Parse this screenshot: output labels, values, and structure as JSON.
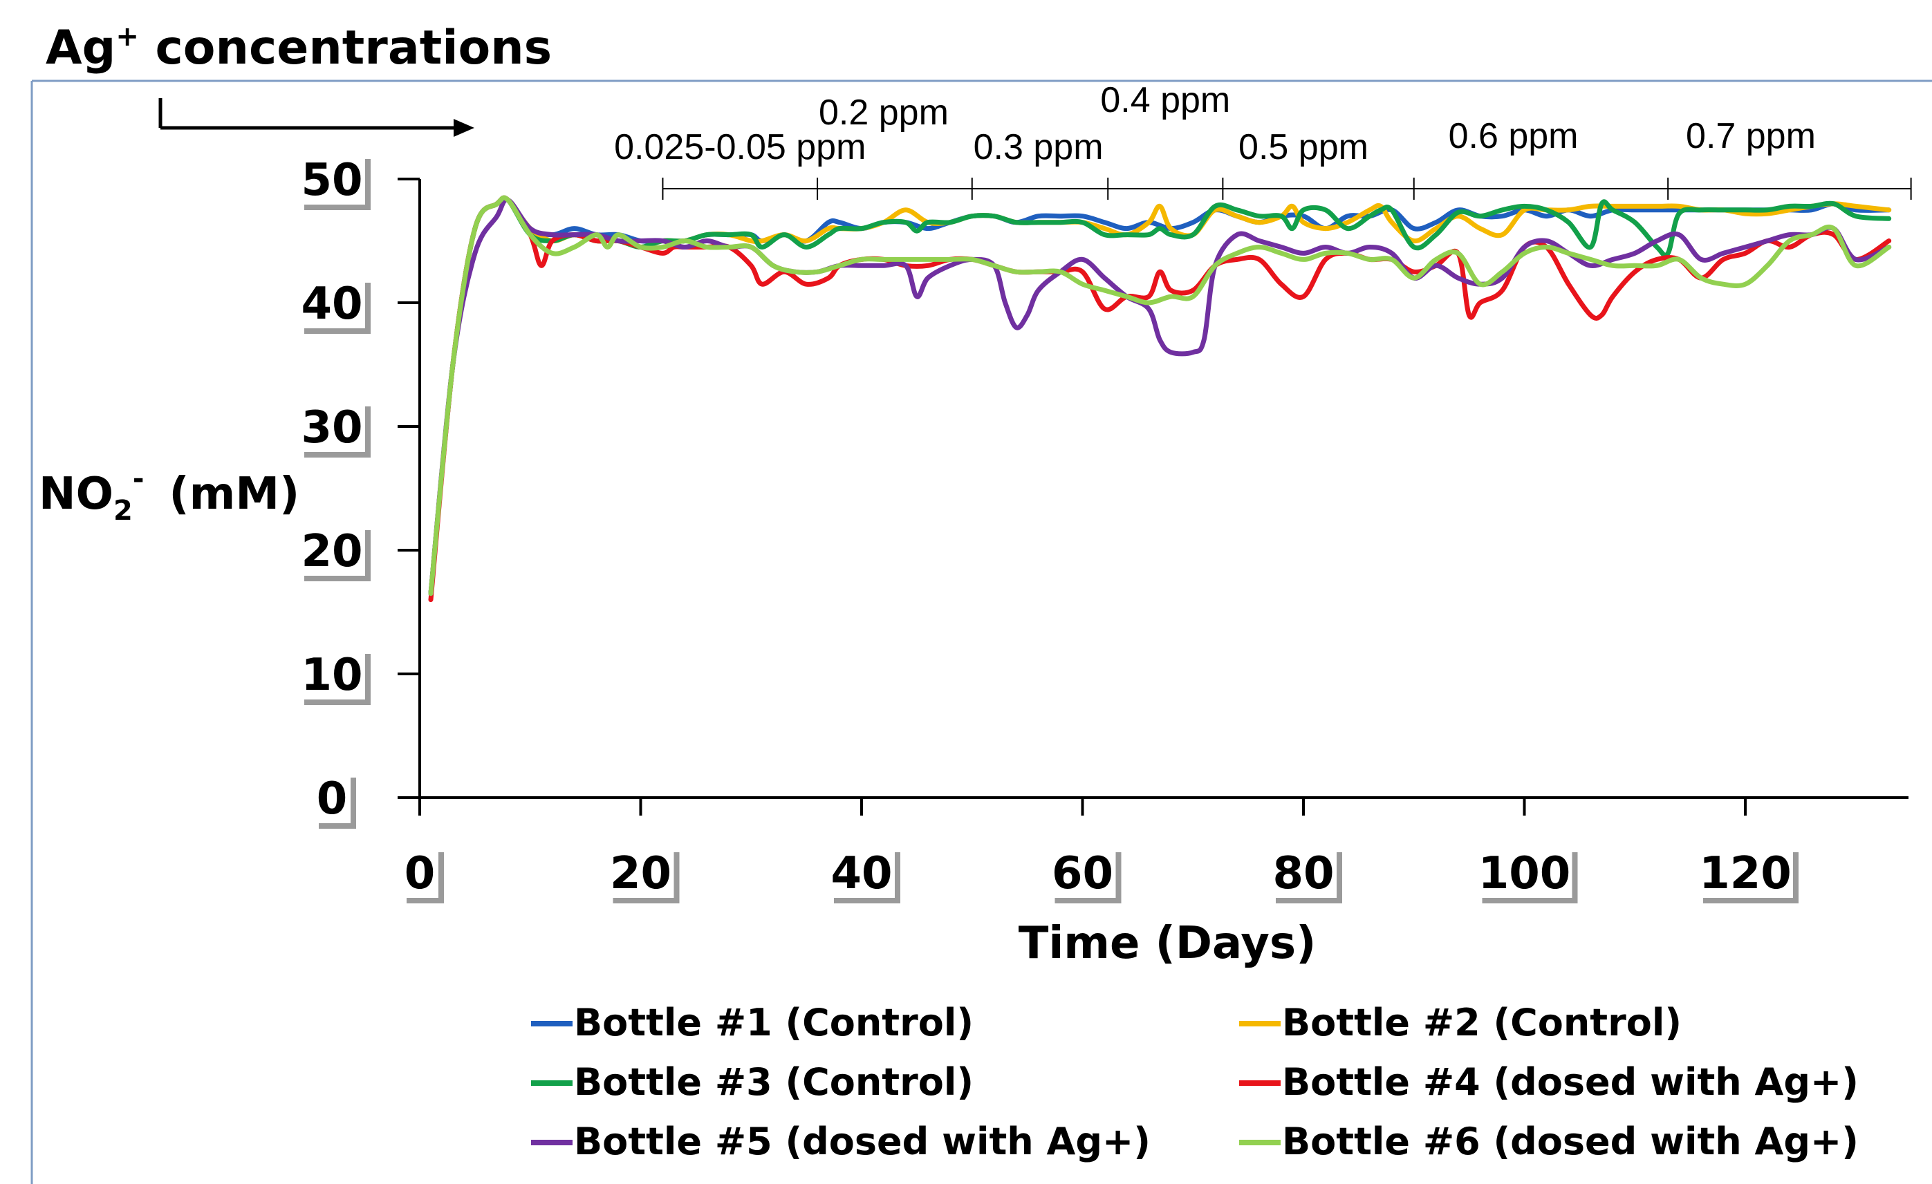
{
  "header": {
    "ion": "Ag",
    "superscript": "+",
    "rest": " concentrations"
  },
  "chart_data": {
    "type": "line",
    "title": "",
    "xlabel": "Time (Days)",
    "ylabel_main": "NO",
    "ylabel_sub": "2",
    "ylabel_sup": "-",
    "ylabel_unit": "(mM)",
    "xlim": [
      0,
      135
    ],
    "ylim": [
      0,
      50
    ],
    "x_ticks": [
      0,
      20,
      40,
      60,
      80,
      100,
      120
    ],
    "x_tick_labels": [
      "0",
      "20",
      "40",
      "60",
      "80",
      "100",
      "120"
    ],
    "y_ticks": [
      0,
      10,
      20,
      30,
      40,
      50
    ],
    "y_tick_labels": [
      "0",
      "10",
      "20",
      "30",
      "40",
      "50"
    ],
    "grid": false,
    "legend_position": "bottom",
    "concentration_bounds": [
      22,
      36,
      50,
      62.3,
      72.7,
      90,
      113,
      135
    ],
    "concentration_labels": [
      {
        "text": "0.025-0.05 ppm",
        "x": 29,
        "row": "low"
      },
      {
        "text": "0.2 ppm",
        "x": 42,
        "row": "high"
      },
      {
        "text": "0.3 ppm",
        "x": 56,
        "row": "low"
      },
      {
        "text": "0.4 ppm",
        "x": 67.5,
        "row": "top"
      },
      {
        "text": "0.5 ppm",
        "x": 80,
        "row": "low"
      },
      {
        "text": "0.6 ppm",
        "x": 99,
        "row": "mid"
      },
      {
        "text": "0.7 ppm",
        "x": 120.5,
        "row": "mid"
      }
    ],
    "series": [
      {
        "name": "Bottle #1 (Control)",
        "color": "#1f5fbf",
        "x": [
          1,
          3,
          5,
          7,
          8,
          10,
          12,
          14,
          16,
          18,
          20,
          22,
          24,
          26,
          28,
          30,
          31,
          33,
          35,
          37,
          38,
          40,
          42,
          44,
          46,
          48,
          50,
          52,
          54,
          56,
          58,
          60,
          62,
          64,
          66,
          68,
          70,
          72,
          74,
          76,
          78,
          80,
          82,
          84,
          86,
          88,
          90,
          92,
          94,
          96,
          98,
          100,
          102,
          104,
          106,
          108,
          110,
          112,
          114,
          116,
          118,
          120,
          122,
          124,
          126,
          128,
          130,
          133
        ],
        "y": [
          16.5,
          35,
          46,
          48,
          48.3,
          46,
          45.5,
          46,
          45.5,
          45.5,
          45,
          45,
          45,
          45.5,
          45.5,
          45.5,
          45,
          45.5,
          45,
          46.5,
          46.5,
          46,
          46.5,
          46.5,
          46,
          46.5,
          47,
          47,
          46.5,
          47,
          47,
          47,
          46.5,
          46,
          46.5,
          46,
          46.5,
          47.5,
          47,
          46.5,
          47,
          47,
          46,
          47,
          47,
          47.5,
          46,
          46.5,
          47.5,
          47,
          47,
          47.5,
          47,
          47.5,
          47,
          47.5,
          47.5,
          47.5,
          47.5,
          47.5,
          47.5,
          47.5,
          47.5,
          47.5,
          47.5,
          48,
          47.5,
          47.5
        ]
      },
      {
        "name": "Bottle #2 (Control)",
        "color": "#f5b800",
        "x": [
          1,
          3,
          5,
          7,
          8,
          10,
          12,
          14,
          16,
          18,
          20,
          22,
          24,
          26,
          28,
          30,
          31,
          33,
          35,
          37,
          38,
          40,
          42,
          44,
          46,
          48,
          50,
          52,
          54,
          56,
          58,
          60,
          62,
          64,
          66,
          67,
          68,
          70,
          72,
          74,
          76,
          78,
          79,
          80,
          82,
          84,
          86,
          87,
          88,
          90,
          92,
          94,
          96,
          98,
          100,
          102,
          104,
          106,
          108,
          110,
          112,
          114,
          116,
          118,
          120,
          122,
          124,
          126,
          128,
          130,
          133
        ],
        "y": [
          16.5,
          35,
          46,
          48,
          48.3,
          46,
          45,
          45.5,
          45,
          45,
          44.5,
          45,
          45,
          45.5,
          45.5,
          45,
          45,
          45.5,
          45,
          46,
          46,
          46,
          46.5,
          47.5,
          46.5,
          46.5,
          47,
          47,
          46.5,
          46.5,
          46.5,
          46.5,
          46,
          45.5,
          46.5,
          47.8,
          46,
          45.5,
          47.5,
          47,
          46.5,
          47,
          47.8,
          46.5,
          46,
          46.5,
          47.5,
          47.8,
          46.5,
          45,
          46,
          47,
          46,
          45.5,
          47.5,
          47.5,
          47.5,
          47.8,
          47.8,
          47.8,
          47.8,
          47.8,
          47.5,
          47.5,
          47.2,
          47.2,
          47.5,
          47.8,
          48,
          47.8,
          47.5
        ]
      },
      {
        "name": "Bottle #3 (Control)",
        "color": "#12a04a",
        "x": [
          1,
          3,
          5,
          7,
          8,
          10,
          12,
          14,
          16,
          18,
          20,
          22,
          24,
          26,
          28,
          30,
          31,
          33,
          35,
          37,
          38,
          40,
          42,
          44,
          45,
          46,
          48,
          50,
          52,
          54,
          56,
          58,
          60,
          62,
          64,
          66,
          67,
          68,
          70,
          72,
          74,
          76,
          78,
          79,
          80,
          82,
          84,
          86,
          87,
          88,
          90,
          92,
          94,
          96,
          98,
          100,
          102,
          104,
          106,
          107,
          108,
          110,
          112,
          113,
          114,
          116,
          118,
          120,
          122,
          124,
          126,
          128,
          130,
          133
        ],
        "y": [
          16.5,
          35,
          46,
          48,
          48.3,
          45.5,
          45,
          45.5,
          45,
          45,
          44.5,
          45,
          45,
          45.5,
          45.5,
          45.5,
          44.5,
          45.5,
          44.5,
          45.5,
          46,
          46,
          46.5,
          46.5,
          45.8,
          46.5,
          46.5,
          47,
          47,
          46.5,
          46.5,
          46.5,
          46.5,
          45.5,
          45.5,
          45.5,
          46,
          45.5,
          45.5,
          47.8,
          47.5,
          47,
          47,
          46,
          47.5,
          47.5,
          46,
          47,
          47.5,
          47.5,
          44.5,
          45.5,
          47.3,
          47,
          47.5,
          47.8,
          47.5,
          46.5,
          44.5,
          48,
          47.5,
          46.5,
          44.5,
          44,
          47.2,
          47.5,
          47.5,
          47.5,
          47.5,
          47.8,
          47.8,
          48,
          47,
          46.8
        ]
      },
      {
        "name": "Bottle #4 (dosed with Ag+)",
        "color": "#e8141b",
        "x": [
          1,
          3,
          5,
          7,
          8,
          10,
          11,
          12,
          14,
          16,
          18,
          20,
          22,
          23,
          24,
          26,
          28,
          30,
          31,
          33,
          35,
          37,
          38,
          40,
          42,
          44,
          46,
          48,
          50,
          52,
          54,
          56,
          58,
          60,
          62,
          64,
          66,
          67,
          68,
          70,
          72,
          74,
          76,
          78,
          80,
          82,
          84,
          86,
          88,
          90,
          92,
          94,
          95,
          96,
          98,
          100,
          102,
          104,
          106,
          107,
          108,
          110,
          112,
          114,
          116,
          118,
          120,
          122,
          124,
          126,
          128,
          130,
          133
        ],
        "y": [
          16,
          35,
          46,
          48,
          48.3,
          45.5,
          43,
          45,
          45.5,
          45,
          45,
          44.5,
          44,
          44.5,
          44.5,
          44.5,
          44.5,
          43,
          41.5,
          42.5,
          41.5,
          42,
          43,
          43.5,
          43.5,
          43,
          43,
          43.5,
          43.5,
          43,
          42.5,
          42.5,
          42.5,
          42.5,
          39.5,
          40.5,
          40.5,
          42.5,
          41,
          41,
          43,
          43.5,
          43.5,
          41.5,
          40.5,
          43.5,
          44,
          43.5,
          43.5,
          42.5,
          43,
          44,
          39,
          40,
          41,
          44.5,
          44.5,
          41.5,
          39,
          39,
          40.5,
          42.5,
          43.5,
          43.5,
          42,
          43.5,
          44,
          45,
          44.5,
          45.5,
          45.5,
          43.5,
          45
        ]
      },
      {
        "name": "Bottle #5 (dosed with Ag+)",
        "color": "#7030a0",
        "x": [
          1,
          3,
          5,
          7,
          8,
          10,
          12,
          14,
          16,
          18,
          20,
          22,
          24,
          26,
          28,
          30,
          32,
          34,
          36,
          38,
          40,
          42,
          44,
          45,
          46,
          48,
          50,
          52,
          53,
          54,
          55,
          56,
          58,
          60,
          62,
          64,
          66,
          67,
          68,
          70,
          71,
          72,
          74,
          76,
          78,
          80,
          82,
          84,
          86,
          88,
          90,
          92,
          94,
          96,
          98,
          100,
          102,
          104,
          106,
          108,
          110,
          112,
          114,
          116,
          118,
          120,
          122,
          124,
          126,
          128,
          130,
          133
        ],
        "y": [
          16.5,
          35,
          44,
          47,
          48.3,
          46,
          45.5,
          45.5,
          45.5,
          45,
          45,
          45,
          44.5,
          45,
          44.5,
          44.5,
          43,
          42.5,
          42.5,
          43,
          43,
          43,
          43,
          40.5,
          42,
          43,
          43.5,
          43,
          40,
          38,
          39,
          41,
          42.5,
          43.5,
          42,
          40.5,
          39.5,
          37,
          36,
          36,
          37,
          43,
          45.5,
          45,
          44.5,
          44,
          44.5,
          44,
          44.5,
          44,
          42,
          43,
          42,
          41.5,
          42,
          44.5,
          45,
          44,
          43,
          43.5,
          44,
          45,
          45.5,
          43.5,
          44,
          44.5,
          45,
          45.5,
          45.5,
          46,
          43.5,
          44.5
        ]
      },
      {
        "name": "Bottle #6 (dosed with Ag+)",
        "color": "#92d050",
        "x": [
          1,
          3,
          5,
          7,
          8,
          10,
          12,
          14,
          16,
          17,
          18,
          20,
          22,
          24,
          26,
          28,
          30,
          32,
          34,
          36,
          38,
          40,
          42,
          44,
          46,
          48,
          50,
          52,
          54,
          56,
          58,
          60,
          62,
          64,
          66,
          68,
          70,
          72,
          74,
          76,
          78,
          80,
          82,
          84,
          86,
          88,
          90,
          92,
          94,
          96,
          98,
          100,
          102,
          104,
          106,
          108,
          110,
          112,
          114,
          116,
          118,
          120,
          122,
          124,
          126,
          128,
          130,
          133
        ],
        "y": [
          16.5,
          35,
          46,
          48,
          48.3,
          45.5,
          44,
          44.5,
          45.5,
          44.5,
          45.5,
          44.5,
          44.5,
          45,
          44.5,
          44.5,
          44.5,
          43,
          42.5,
          42.5,
          43,
          43.5,
          43.5,
          43.5,
          43.5,
          43.5,
          43.5,
          43,
          42.5,
          42.5,
          42.5,
          41.5,
          41,
          40.5,
          40,
          40.5,
          40.5,
          43,
          44,
          44.5,
          44,
          43.5,
          44,
          44,
          43.5,
          43.5,
          42,
          43.5,
          44,
          41.5,
          42.5,
          44,
          44.5,
          44,
          43.5,
          43,
          43,
          43,
          43.5,
          42,
          41.5,
          41.5,
          43,
          45,
          45.5,
          46,
          43,
          44.5
        ]
      }
    ]
  }
}
